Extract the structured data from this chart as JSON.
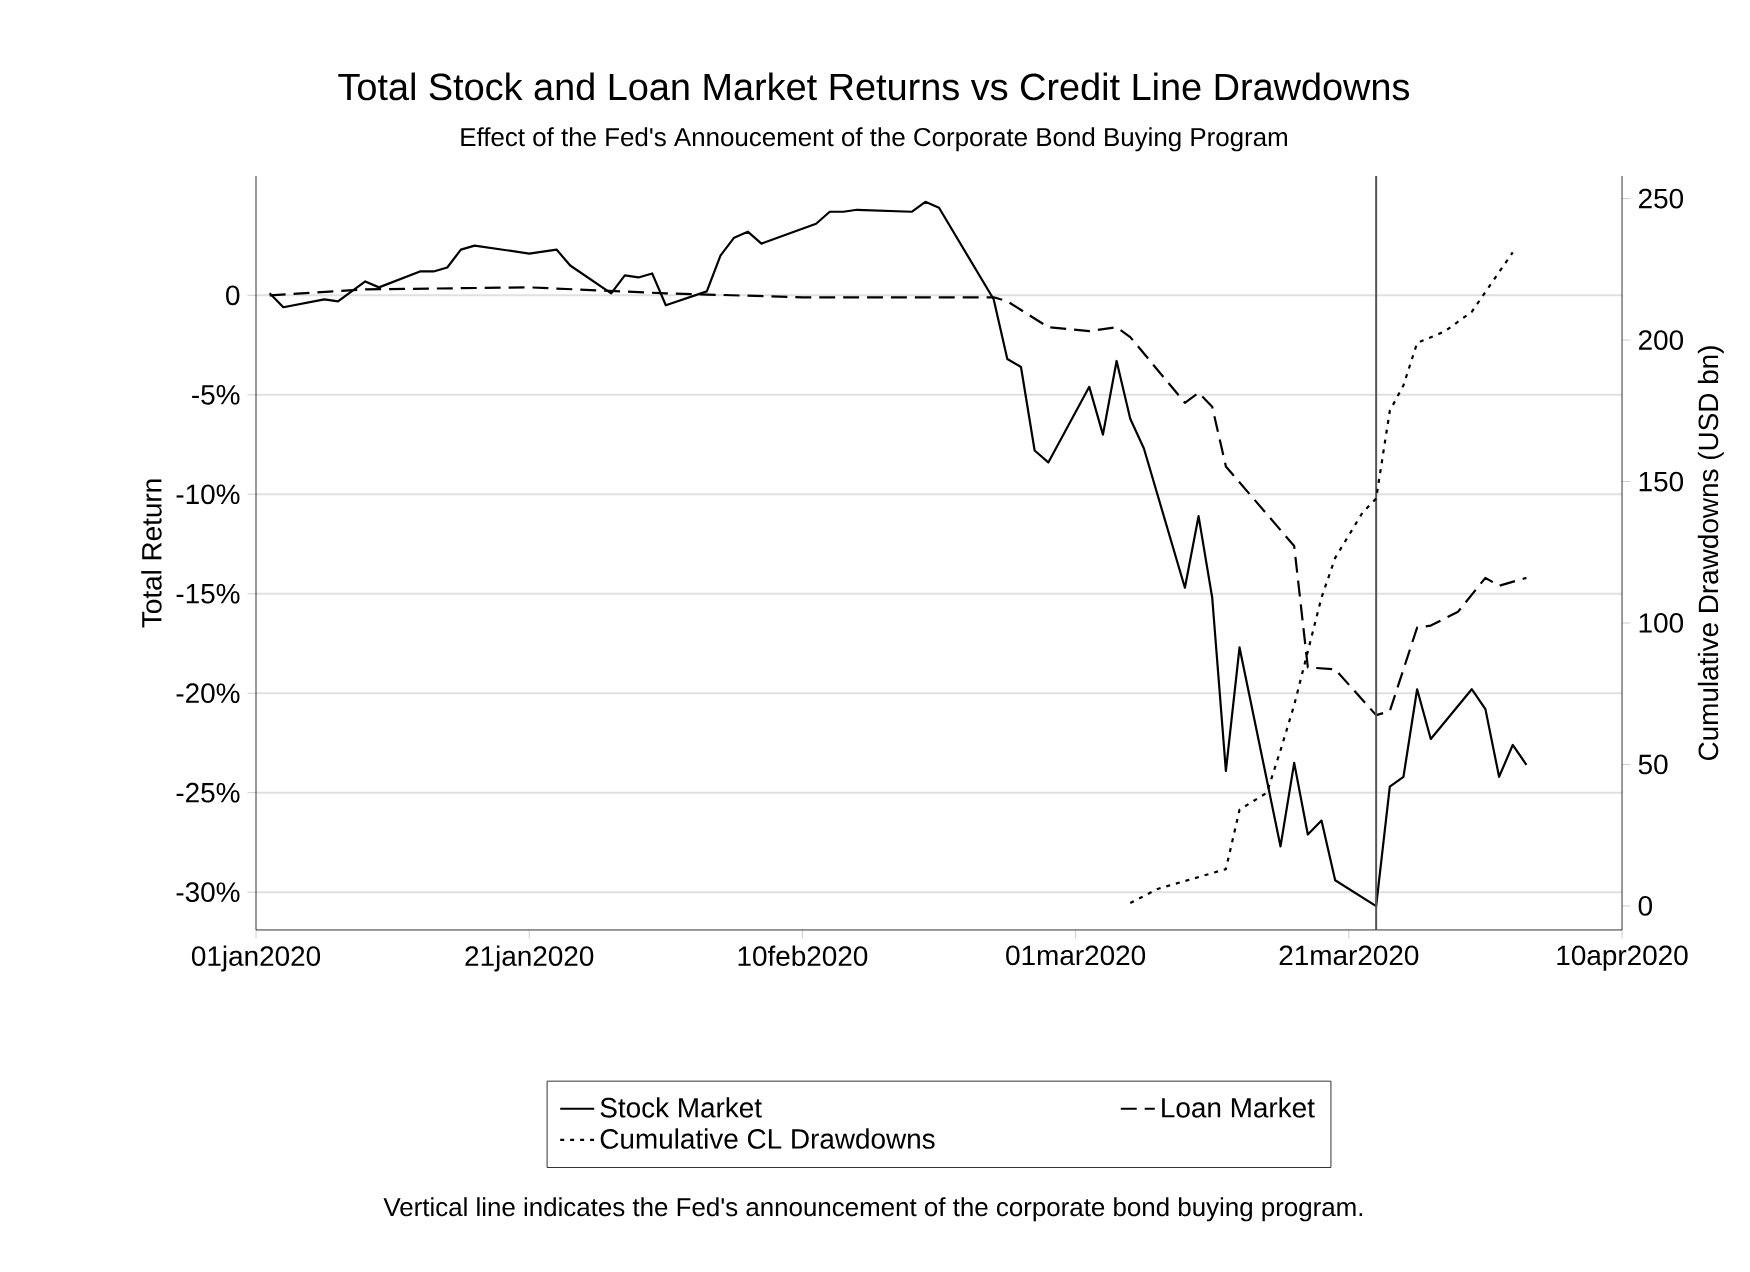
{
  "chart_data": {
    "type": "line",
    "title": "Total Stock and Loan Market Returns vs Credit Line Drawdowns",
    "subtitle": "Effect of the Fed's Annoucement of the Corporate Bond Buying Program",
    "ylabel": "Total Return",
    "y2label": "Cumulative Drawdowns (USD bn)",
    "xlim": [
      "2020-01-01",
      "2020-04-10"
    ],
    "xticks": [
      {
        "value": "2020-01-01",
        "label": "01jan2020"
      },
      {
        "value": "2020-01-21",
        "label": "21jan2020"
      },
      {
        "value": "2020-02-10",
        "label": "10feb2020"
      },
      {
        "value": "2020-03-01",
        "label": "01mar2020"
      },
      {
        "value": "2020-03-21",
        "label": "21mar2020"
      },
      {
        "value": "2020-04-10",
        "label": "10apr2020"
      }
    ],
    "ylim": [
      -31.9,
      6
    ],
    "yticks": [
      {
        "value": -30,
        "label": "-30%"
      },
      {
        "value": -25,
        "label": "-25%"
      },
      {
        "value": -20,
        "label": "-20%"
      },
      {
        "value": -15,
        "label": "-15%"
      },
      {
        "value": -10,
        "label": "-10%"
      },
      {
        "value": -5,
        "label": "-5%"
      },
      0
    ],
    "y2lim": [
      -8.5,
      258
    ],
    "y2ticks": [
      0,
      50,
      100,
      150,
      200,
      250
    ],
    "series": [
      {
        "name": "Stock Market",
        "color": "#000000",
        "line_style": "solid",
        "x": [
          "2020-01-02",
          "2020-01-03",
          "2020-01-06",
          "2020-01-07",
          "2020-01-09",
          "2020-01-10",
          "2020-01-13",
          "2020-01-14",
          "2020-01-15",
          "2020-01-16",
          "2020-01-17",
          "2020-01-21",
          "2020-01-23",
          "2020-01-24",
          "2020-01-27",
          "2020-01-28",
          "2020-01-29",
          "2020-01-30",
          "2020-01-31",
          "2020-02-03",
          "2020-02-04",
          "2020-02-05",
          "2020-02-06",
          "2020-02-07",
          "2020-02-11",
          "2020-02-12",
          "2020-02-13",
          "2020-02-14",
          "2020-02-18",
          "2020-02-19",
          "2020-02-20",
          "2020-02-24",
          "2020-02-25",
          "2020-02-26",
          "2020-02-27",
          "2020-02-28",
          "2020-03-02",
          "2020-03-03",
          "2020-03-04",
          "2020-03-05",
          "2020-03-06",
          "2020-03-09",
          "2020-03-10",
          "2020-03-11",
          "2020-03-12",
          "2020-03-13",
          "2020-03-16",
          "2020-03-17",
          "2020-03-18",
          "2020-03-19",
          "2020-03-20",
          "2020-03-23",
          "2020-03-24",
          "2020-03-25",
          "2020-03-26",
          "2020-03-27",
          "2020-03-30",
          "2020-03-31",
          "2020-04-01",
          "2020-04-02",
          "2020-04-03"
        ],
        "values": [
          0.1,
          -0.6,
          -0.2,
          -0.3,
          0.7,
          0.4,
          1.2,
          1.2,
          1.4,
          2.3,
          2.5,
          2.1,
          2.3,
          1.5,
          0.1,
          1.0,
          0.9,
          1.1,
          -0.5,
          0.2,
          2.0,
          2.9,
          3.2,
          2.6,
          3.6,
          4.2,
          4.2,
          4.3,
          4.2,
          4.7,
          4.4,
          -0.2,
          -3.2,
          -3.6,
          -7.8,
          -8.4,
          -4.6,
          -7.0,
          -3.3,
          -6.2,
          -7.7,
          -14.7,
          -11.1,
          -15.2,
          -23.9,
          -17.7,
          -27.7,
          -23.5,
          -27.1,
          -26.4,
          -29.4,
          -30.7,
          -24.7,
          -24.2,
          -19.8,
          -22.3,
          -19.8,
          -20.8,
          -24.2,
          -22.6,
          -23.6
        ]
      },
      {
        "name": "Loan Market",
        "color": "#000000",
        "line_style": "dashed",
        "x": [
          "2020-01-02",
          "2020-01-09",
          "2020-01-21",
          "2020-01-31",
          "2020-02-10",
          "2020-02-20",
          "2020-02-24",
          "2020-02-25",
          "2020-02-28",
          "2020-03-02",
          "2020-03-04",
          "2020-03-05",
          "2020-03-09",
          "2020-03-10",
          "2020-03-11",
          "2020-03-12",
          "2020-03-14",
          "2020-03-17",
          "2020-03-18",
          "2020-03-20",
          "2020-03-23",
          "2020-03-24",
          "2020-03-26",
          "2020-03-27",
          "2020-03-29",
          "2020-03-31",
          "2020-04-01",
          "2020-04-03"
        ],
        "values": [
          0.0,
          0.3,
          0.4,
          0.1,
          -0.1,
          -0.1,
          -0.1,
          -0.3,
          -1.6,
          -1.8,
          -1.6,
          -2.1,
          -5.4,
          -4.9,
          -5.6,
          -8.6,
          -10.2,
          -12.6,
          -18.7,
          -18.8,
          -21.1,
          -20.9,
          -16.7,
          -16.6,
          -15.9,
          -14.2,
          -14.6,
          -14.2
        ]
      },
      {
        "name": "Cumulative CL Drawdowns",
        "color": "#000000",
        "line_style": "dotted",
        "axis": "y2",
        "x": [
          "2020-03-05",
          "2020-03-07",
          "2020-03-12",
          "2020-03-13",
          "2020-03-15",
          "2020-03-16",
          "2020-03-17",
          "2020-03-19",
          "2020-03-20",
          "2020-03-22",
          "2020-03-23",
          "2020-03-24",
          "2020-03-25",
          "2020-03-26",
          "2020-03-28",
          "2020-03-30",
          "2020-04-01",
          "2020-04-02"
        ],
        "values": [
          1,
          6,
          13,
          34,
          40,
          55,
          71,
          109,
          123,
          139,
          144,
          175,
          184,
          199,
          203,
          210,
          224,
          231
        ]
      }
    ],
    "ref_lines": [
      {
        "axis": "x",
        "value": "2020-03-23",
        "color": "#555555"
      }
    ],
    "grid": "y",
    "legend": "bottom",
    "annotations": [
      "Vertical line indicates the Fed's announcement of the corporate bond buying program."
    ]
  }
}
